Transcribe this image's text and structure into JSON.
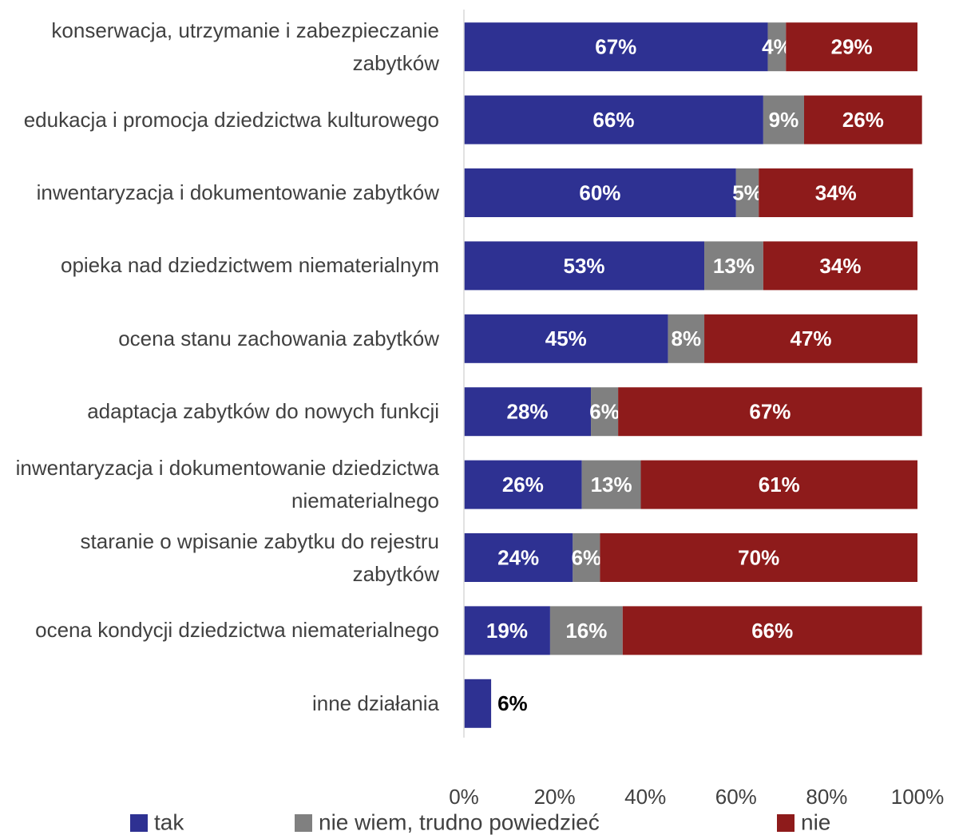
{
  "chart_data": {
    "type": "bar",
    "orientation": "horizontal",
    "stacked": true,
    "categories": [
      "konserwacja, utrzymanie i zabezpieczanie zabytków",
      "edukacja i promocja dziedzictwa kulturowego",
      "inwentaryzacja i dokumentowanie zabytków",
      "opieka nad dziedzictwem niematerialnym",
      "ocena stanu zachowania zabytków",
      "adaptacja zabytków do nowych funkcji",
      "inwentaryzacja i dokumentowanie dziedzictwa niematerialnego",
      "staranie o wpisanie zabytku do rejestru zabytków",
      "ocena kondycji dziedzictwa niematerialnego",
      "inne działania"
    ],
    "series": [
      {
        "name": "tak",
        "color": "#2e3192",
        "values": [
          67,
          66,
          60,
          53,
          45,
          28,
          26,
          24,
          19,
          6
        ],
        "value_labels": [
          "67%",
          "66%",
          "60%",
          "53%",
          "45%",
          "28%",
          "26%",
          "24%",
          "19%",
          "6%"
        ]
      },
      {
        "name": "nie wiem, trudno powiedzieć",
        "color": "#808080",
        "values": [
          4,
          9,
          5,
          13,
          8,
          6,
          13,
          6,
          16,
          null
        ],
        "value_labels": [
          "4%",
          "9%",
          "5%",
          "13%",
          "8%",
          "6%",
          "13%",
          "6%",
          "16%",
          null
        ]
      },
      {
        "name": "nie",
        "color": "#8e1b1b",
        "values": [
          29,
          26,
          34,
          34,
          47,
          67,
          61,
          70,
          66,
          null
        ],
        "value_labels": [
          "29%",
          "26%",
          "34%",
          "34%",
          "47%",
          "67%",
          "61%",
          "70%",
          "66%",
          null
        ]
      }
    ],
    "xlim": [
      0,
      100
    ],
    "xticks": [
      {
        "value": 0,
        "label": "0%"
      },
      {
        "value": 20,
        "label": "20%"
      },
      {
        "value": 40,
        "label": "40%"
      },
      {
        "value": 60,
        "label": "60%"
      },
      {
        "value": 80,
        "label": "80%"
      },
      {
        "value": 100,
        "label": "100%"
      }
    ],
    "legend": "bottom"
  }
}
